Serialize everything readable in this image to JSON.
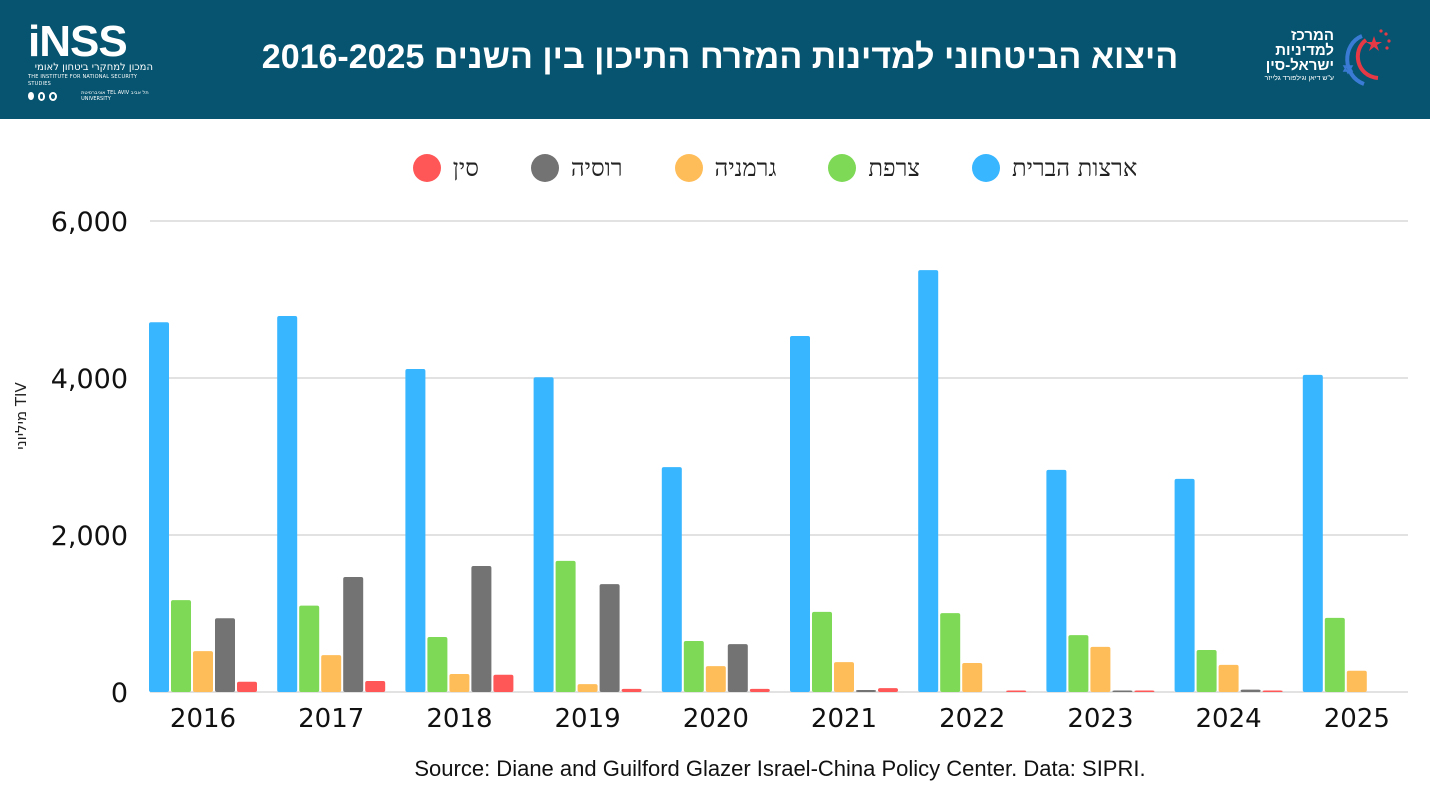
{
  "header": {
    "title": "היצוא הביטחוני למדינות המזרח התיכון בין השנים 2016-2025",
    "inss_logo": {
      "wordmark": "iNSS",
      "hebrew_name": "המכון למחקרי ביטחון לאומי",
      "english_name": "THE INSTITUTE FOR NATIONAL SECURITY STUDIES",
      "university": "אוניברסיטת TEL AVIV תל אביב UNIVERSITY"
    },
    "center_logo": {
      "line1": "המרכז",
      "line2": "למדיניות",
      "line3": "ישראל-סין",
      "subtitle": "ע\"ש דיאן וגילפורד גלייזר",
      "icon": "star-of-david-and-china-stars-icon"
    }
  },
  "colors": {
    "header_bg": "#06546f",
    "us": "#38b6ff",
    "france": "#7ed957",
    "germany": "#ffbd59",
    "russia": "#737373",
    "china": "#ff5757",
    "grid": "#d9d9d9"
  },
  "chart_data": {
    "type": "bar",
    "title": "היצוא הביטחוני למדינות המזרח התיכון בין השנים 2016-2025",
    "xlabel": "",
    "ylabel": "מיליוני TIV",
    "ylim": [
      0,
      6000
    ],
    "yticks": [
      0,
      2000,
      4000,
      6000
    ],
    "ytick_labels": [
      "0",
      "2,000",
      "4,000",
      "6,000"
    ],
    "grid": true,
    "legend_position": "top-center",
    "categories": [
      "2016",
      "2017",
      "2018",
      "2019",
      "2020",
      "2021",
      "2022",
      "2023",
      "2024",
      "2025"
    ],
    "series": [
      {
        "name": "ארצות הברית",
        "key": "us",
        "values": [
          4710,
          4790,
          4115,
          4010,
          2865,
          4535,
          5375,
          2830,
          2715,
          4040
        ]
      },
      {
        "name": "צרפת",
        "key": "france",
        "values": [
          1170,
          1100,
          700,
          1670,
          650,
          1020,
          1005,
          725,
          535,
          945
        ]
      },
      {
        "name": "גרמניה",
        "key": "germany",
        "values": [
          520,
          470,
          230,
          100,
          330,
          380,
          370,
          575,
          345,
          270
        ]
      },
      {
        "name": "רוסיה",
        "key": "russia",
        "values": [
          940,
          1465,
          1605,
          1375,
          610,
          25,
          0,
          10,
          30,
          0
        ]
      },
      {
        "name": "סין",
        "key": "china",
        "values": [
          130,
          140,
          220,
          40,
          40,
          50,
          10,
          5,
          10,
          0
        ]
      }
    ]
  },
  "footer": {
    "source": "Source: Diane and Guilford Glazer Israel-China Policy Center. Data: SIPRI."
  }
}
